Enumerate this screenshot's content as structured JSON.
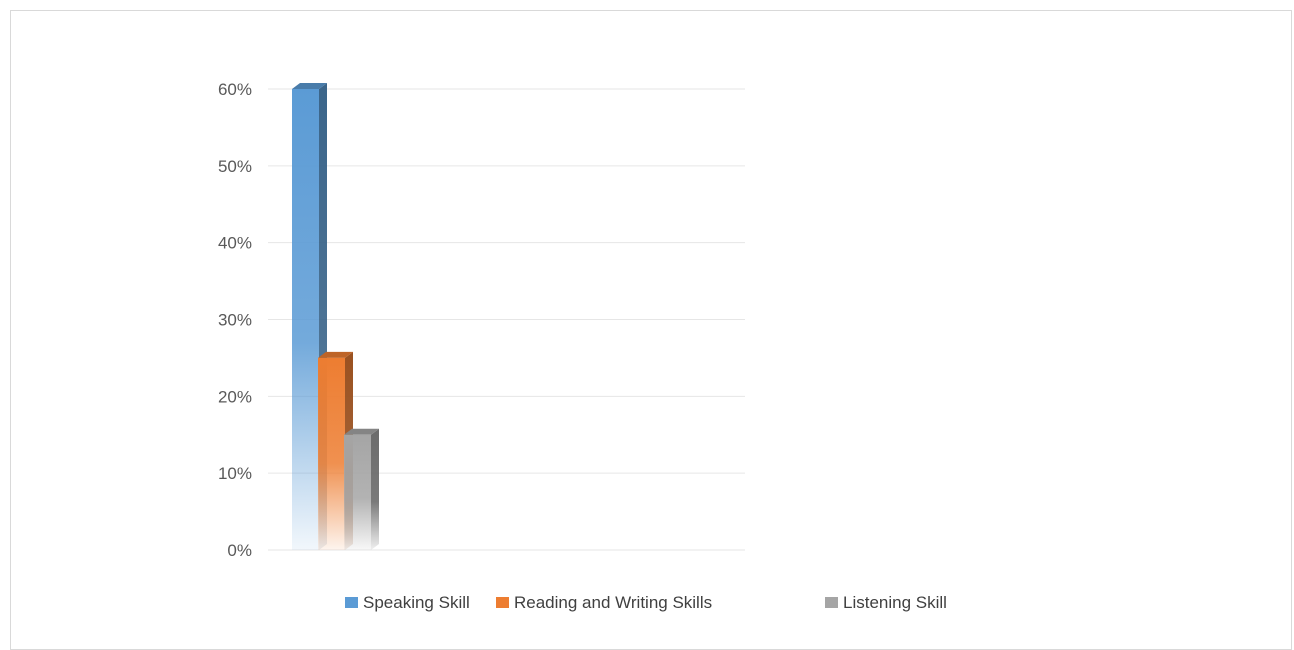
{
  "chart_data": {
    "type": "bar",
    "style": "3d-clustered-column",
    "categories": [
      ""
    ],
    "series": [
      {
        "name": "Speaking Skill",
        "values": [
          60
        ],
        "color": "#5B9BD5"
      },
      {
        "name": "Reading and Writing Skills",
        "values": [
          25
        ],
        "color": "#ED7D31"
      },
      {
        "name": "Listening Skill",
        "values": [
          15
        ],
        "color": "#A5A5A5"
      }
    ],
    "ylim": [
      0,
      60
    ],
    "yticks": [
      0,
      10,
      20,
      30,
      40,
      50,
      60
    ],
    "ytick_labels": [
      "0%",
      "10%",
      "20%",
      "30%",
      "40%",
      "50%",
      "60%"
    ],
    "grid": true,
    "legend": "bottom",
    "title": "",
    "xlabel": "",
    "ylabel": ""
  }
}
